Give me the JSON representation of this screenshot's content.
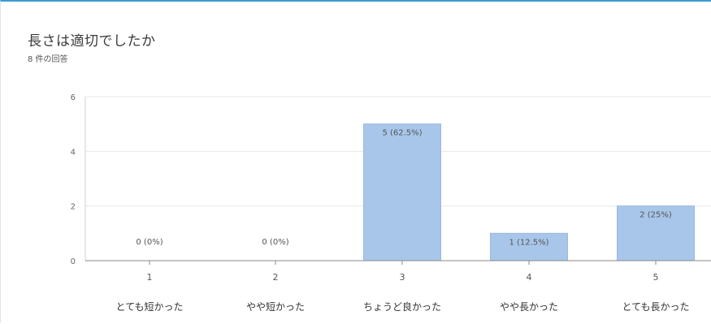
{
  "header": {
    "title": "長さは適切でしたか",
    "subtitle": "8 件の回答"
  },
  "chart_data": {
    "type": "bar",
    "title": "長さは適切でしたか",
    "categories": [
      "1",
      "2",
      "3",
      "4",
      "5"
    ],
    "category_labels": [
      "とても短かった",
      "やや短かった",
      "ちょうど良かった",
      "やや長かった",
      "とても長かった"
    ],
    "values": [
      0,
      0,
      5,
      1,
      2
    ],
    "data_labels": [
      "0 (0%)",
      "0 (0%)",
      "5 (62.5%)",
      "1 (12.5%)",
      "2 (25%)"
    ],
    "yticks": [
      0,
      2,
      4,
      6
    ],
    "ylim": [
      0,
      6
    ],
    "grid": true,
    "bar_color": "#a8c6ea",
    "bar_border_color": "#9ab9df",
    "grid_color": "#e8e8e8",
    "axis_color": "#888888"
  }
}
